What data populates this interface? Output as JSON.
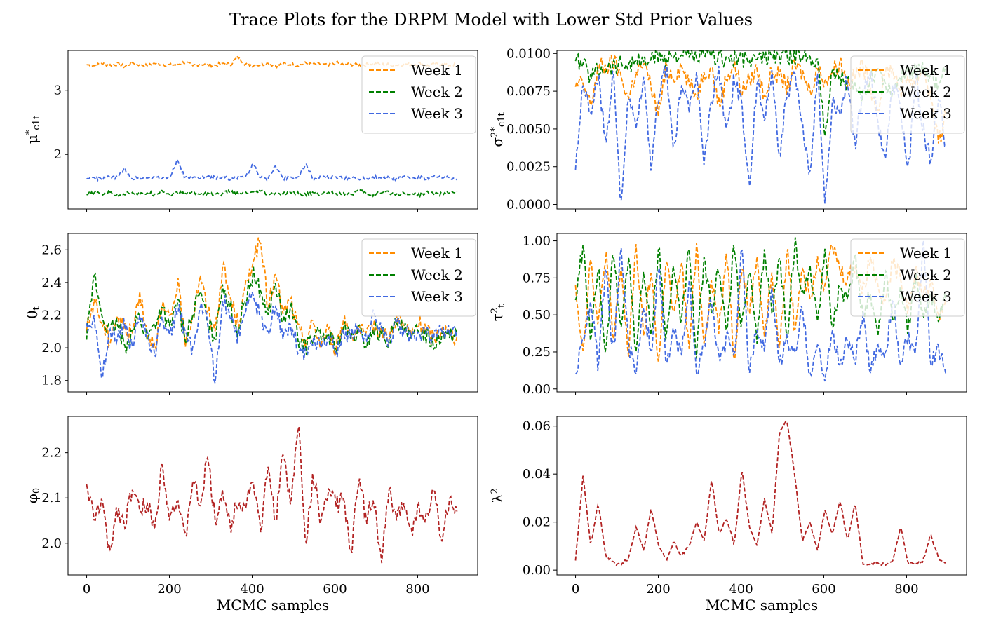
{
  "figure": {
    "title": "Trace Plots for the DRPM Model with Lower Std Prior Values"
  },
  "colors": {
    "week1": "#ff8c00",
    "week2": "#008000",
    "week3": "#4169e1",
    "single": "#b22222"
  },
  "chart_data": [
    {
      "id": "mu",
      "type": "line",
      "ylabel": "μ*c1t",
      "xlabel": "",
      "xlim": [
        -45,
        945
      ],
      "ylim": [
        1.15,
        3.62
      ],
      "yticks": [
        "2",
        "3"
      ],
      "ytick_values": [
        2,
        3
      ],
      "xticks": [
        "0",
        "200",
        "400",
        "600",
        "800"
      ],
      "xticks_labeled": false,
      "legend": "upper right",
      "line_style": "dashed",
      "series": [
        {
          "name": "Week 1",
          "color": "#ff8c00",
          "values": [
            3.4,
            3.38,
            3.42,
            3.39,
            3.41,
            3.37,
            3.43,
            3.4,
            3.38,
            3.42,
            3.41,
            3.39,
            3.4,
            3.44,
            3.38,
            3.41,
            3.4,
            3.39,
            3.42,
            3.4,
            3.52,
            3.41,
            3.39,
            3.4,
            3.42,
            3.38,
            3.41,
            3.4,
            3.39,
            3.42,
            3.4,
            3.41,
            3.38,
            3.43,
            3.4,
            3.41,
            3.39,
            3.4,
            3.42,
            3.4,
            3.4,
            3.39,
            3.41,
            3.4,
            3.42,
            3.38,
            3.4,
            3.41,
            3.39,
            3.4
          ]
        },
        {
          "name": "Week 2",
          "color": "#008000",
          "values": [
            1.37,
            1.4,
            1.38,
            1.42,
            1.36,
            1.39,
            1.41,
            1.37,
            1.4,
            1.38,
            1.44,
            1.37,
            1.4,
            1.39,
            1.41,
            1.38,
            1.4,
            1.37,
            1.39,
            1.42,
            1.38,
            1.4,
            1.39,
            1.43,
            1.37,
            1.4,
            1.38,
            1.41,
            1.39,
            1.37,
            1.4,
            1.38,
            1.41,
            1.39,
            1.4,
            1.38,
            1.44,
            1.39,
            1.37,
            1.4,
            1.41,
            1.38,
            1.4,
            1.39,
            1.37,
            1.41,
            1.39,
            1.38,
            1.4,
            1.42
          ]
        },
        {
          "name": "Week 3",
          "color": "#4169e1",
          "values": [
            1.62,
            1.64,
            1.61,
            1.65,
            1.63,
            1.78,
            1.62,
            1.64,
            1.63,
            1.66,
            1.62,
            1.65,
            1.91,
            1.63,
            1.64,
            1.62,
            1.66,
            1.63,
            1.65,
            1.62,
            1.64,
            1.63,
            1.85,
            1.64,
            1.62,
            1.82,
            1.63,
            1.65,
            1.64,
            1.84,
            1.62,
            1.64,
            1.63,
            1.65,
            1.62,
            1.64,
            1.63,
            1.62,
            1.65,
            1.63,
            1.64,
            1.62,
            1.66,
            1.63,
            1.64,
            1.62,
            1.65,
            1.63,
            1.64,
            1.6
          ]
        }
      ]
    },
    {
      "id": "sigma",
      "type": "line",
      "ylabel": "σ2*c1t",
      "xlabel": "",
      "xlim": [
        -45,
        945
      ],
      "ylim": [
        -0.0003,
        0.0102
      ],
      "yticks": [
        "0.0000",
        "0.0025",
        "0.0050",
        "0.0075",
        "0.0100"
      ],
      "ytick_values": [
        0.0,
        0.0025,
        0.005,
        0.0075,
        0.01
      ],
      "xticks": [
        "0",
        "200",
        "400",
        "600",
        "800"
      ],
      "xticks_labeled": false,
      "legend": "upper right",
      "line_style": "dashed",
      "series": [
        {
          "name": "Week 1",
          "color": "#ff8c00",
          "values": [
            0.0078,
            0.008,
            0.0065,
            0.0092,
            0.009,
            0.0095,
            0.0085,
            0.007,
            0.0088,
            0.0093,
            0.0078,
            0.006,
            0.009,
            0.0085,
            0.0092,
            0.008,
            0.0072,
            0.0088,
            0.0091,
            0.0065,
            0.0085,
            0.0093,
            0.0075,
            0.0082,
            0.009,
            0.0072,
            0.0088,
            0.0085,
            0.0078,
            0.0092,
            0.0087,
            0.0075,
            0.009,
            0.0082,
            0.0088,
            0.0095,
            0.008,
            0.0085,
            0.0092,
            0.0078,
            0.0062,
            0.0088,
            0.009,
            0.0075,
            0.0085,
            0.008,
            0.0092,
            0.007,
            0.004,
            0.006
          ]
        },
        {
          "name": "Week 2",
          "color": "#008000",
          "values": [
            0.0095,
            0.0093,
            0.0085,
            0.009,
            0.0092,
            0.0091,
            0.0094,
            0.0093,
            0.0095,
            0.0094,
            0.0096,
            0.0098,
            0.0097,
            0.0099,
            0.0099,
            0.0098,
            0.0097,
            0.0099,
            0.0098,
            0.0098,
            0.0097,
            0.0096,
            0.0097,
            0.0095,
            0.0096,
            0.0097,
            0.0099,
            0.0098,
            0.0099,
            0.0097,
            0.0099,
            0.0098,
            0.0097,
            0.0045,
            0.009,
            0.0085,
            0.008,
            0.0075,
            0.007,
            0.0085,
            0.009,
            0.008,
            0.0075,
            0.0085,
            0.009,
            0.0088,
            0.0092,
            0.0085,
            0.008,
            0.009
          ]
        },
        {
          "name": "Week 3",
          "color": "#4169e1",
          "values": [
            0.0023,
            0.008,
            0.006,
            0.0085,
            0.004,
            0.009,
            0.0,
            0.007,
            0.005,
            0.0085,
            0.002,
            0.0075,
            0.009,
            0.0035,
            0.008,
            0.006,
            0.0088,
            0.0025,
            0.007,
            0.009,
            0.0045,
            0.0085,
            0.0065,
            0.001,
            0.008,
            0.0055,
            0.009,
            0.003,
            0.0075,
            0.0085,
            0.005,
            0.002,
            0.0088,
            0.0,
            0.007,
            0.006,
            0.0085,
            0.004,
            0.0075,
            0.009,
            0.0055,
            0.003,
            0.008,
            0.0065,
            0.002,
            0.0085,
            0.005,
            0.0028,
            0.007,
            0.004
          ]
        }
      ]
    },
    {
      "id": "theta",
      "type": "line",
      "ylabel": "θt",
      "xlabel": "",
      "xlim": [
        -45,
        945
      ],
      "ylim": [
        1.73,
        2.7
      ],
      "yticks": [
        "1.8",
        "2.0",
        "2.2",
        "2.4",
        "2.6"
      ],
      "ytick_values": [
        1.8,
        2.0,
        2.2,
        2.4,
        2.6
      ],
      "xticks": [
        "0",
        "200",
        "400",
        "600",
        "800"
      ],
      "xticks_labeled": false,
      "legend": "upper right",
      "line_style": "dashed",
      "series": [
        {
          "name": "Week 1",
          "color": "#ff8c00",
          "values": [
            2.1,
            2.3,
            2.15,
            2.05,
            2.2,
            2.12,
            2.08,
            2.35,
            2.1,
            2.02,
            2.25,
            2.15,
            2.4,
            2.05,
            2.18,
            2.45,
            2.22,
            2.1,
            2.5,
            2.3,
            2.15,
            2.35,
            2.55,
            2.65,
            2.25,
            2.45,
            2.2,
            2.3,
            2.1,
            2.05,
            2.15,
            2.02,
            2.12,
            1.98,
            2.18,
            2.08,
            2.12,
            2.05,
            2.15,
            2.1,
            2.05,
            2.2,
            2.12,
            2.08,
            2.15,
            2.1,
            2.05,
            2.12,
            2.08,
            2.07
          ]
        },
        {
          "name": "Week 2",
          "color": "#008000",
          "values": [
            2.05,
            2.45,
            2.2,
            2.1,
            2.15,
            2.0,
            2.1,
            2.2,
            2.05,
            2.15,
            2.25,
            2.1,
            2.3,
            2.05,
            2.2,
            2.35,
            2.15,
            2.05,
            2.4,
            2.25,
            2.1,
            2.3,
            2.45,
            2.35,
            2.2,
            2.4,
            2.15,
            2.25,
            2.05,
            2.0,
            2.1,
            2.05,
            2.08,
            2.0,
            2.12,
            2.05,
            2.1,
            2.02,
            2.12,
            2.08,
            2.05,
            2.15,
            2.1,
            2.05,
            2.12,
            2.08,
            2.03,
            2.1,
            2.06,
            2.09
          ]
        },
        {
          "name": "Week 3",
          "color": "#4169e1",
          "values": [
            2.15,
            2.2,
            1.8,
            2.1,
            2.05,
            2.15,
            2.0,
            2.2,
            2.1,
            1.95,
            2.2,
            2.05,
            2.25,
            2.1,
            2.0,
            2.25,
            2.15,
            1.78,
            2.3,
            2.2,
            2.05,
            2.25,
            2.3,
            2.2,
            2.1,
            2.25,
            2.05,
            2.15,
            2.0,
            1.95,
            2.05,
            2.0,
            2.08,
            1.97,
            2.1,
            2.05,
            2.15,
            2.02,
            2.2,
            2.12,
            2.05,
            2.15,
            2.1,
            2.05,
            2.1,
            2.08,
            2.05,
            2.1,
            2.08,
            2.1
          ]
        }
      ]
    },
    {
      "id": "tau",
      "type": "line",
      "ylabel": "τ2t",
      "xlabel": "",
      "xlim": [
        -45,
        945
      ],
      "ylim": [
        -0.02,
        1.05
      ],
      "yticks": [
        "0.00",
        "0.25",
        "0.50",
        "0.75",
        "1.00"
      ],
      "ytick_values": [
        0.0,
        0.25,
        0.5,
        0.75,
        1.0
      ],
      "xticks": [
        "0",
        "200",
        "400",
        "600",
        "800"
      ],
      "xticks_labeled": false,
      "legend": "upper right",
      "line_style": "dashed",
      "series": [
        {
          "name": "Week 1",
          "color": "#ff8c00",
          "values": [
            0.7,
            0.25,
            0.9,
            0.4,
            0.95,
            0.3,
            0.85,
            0.2,
            0.98,
            0.35,
            0.8,
            0.15,
            0.92,
            0.45,
            0.88,
            0.25,
            0.99,
            0.3,
            0.75,
            0.4,
            0.95,
            0.2,
            0.85,
            0.5,
            0.9,
            0.35,
            0.8,
            0.25,
            0.95,
            0.4,
            0.85,
            0.6,
            0.9,
            0.7,
            0.98,
            0.8,
            0.75,
            0.85,
            0.65,
            0.9,
            0.7,
            0.6,
            0.85,
            0.75,
            0.55,
            0.8,
            0.65,
            0.7,
            0.5,
            0.6
          ]
        },
        {
          "name": "Week 2",
          "color": "#008000",
          "values": [
            0.6,
            0.98,
            0.3,
            0.85,
            0.2,
            0.95,
            0.4,
            0.9,
            0.25,
            0.8,
            0.35,
            0.99,
            0.3,
            0.85,
            0.45,
            0.95,
            0.2,
            0.9,
            0.5,
            0.85,
            0.35,
            0.98,
            0.4,
            0.8,
            0.3,
            0.95,
            0.5,
            0.9,
            0.35,
            0.99,
            0.6,
            0.85,
            0.45,
            0.95,
            0.4,
            0.7,
            0.55,
            0.9,
            0.5,
            0.65,
            0.35,
            0.8,
            0.45,
            0.7,
            0.4,
            0.75,
            0.5,
            0.65,
            0.45,
            0.6
          ]
        },
        {
          "name": "Week 3",
          "color": "#4169e1",
          "values": [
            0.1,
            0.35,
            0.6,
            0.15,
            0.8,
            0.2,
            0.98,
            0.3,
            0.1,
            0.55,
            0.25,
            0.85,
            0.15,
            0.4,
            0.2,
            0.75,
            0.1,
            0.3,
            0.6,
            0.15,
            0.35,
            0.2,
            0.95,
            0.1,
            0.4,
            0.25,
            0.7,
            0.15,
            0.35,
            0.2,
            0.55,
            0.1,
            0.3,
            0.05,
            0.4,
            0.15,
            0.35,
            0.2,
            0.5,
            0.1,
            0.3,
            0.25,
            0.6,
            0.15,
            0.35,
            0.2,
            0.99,
            0.15,
            0.3,
            0.1
          ]
        }
      ]
    },
    {
      "id": "phi",
      "type": "line",
      "ylabel": "φ0",
      "xlabel": "MCMC samples",
      "xlim": [
        -45,
        945
      ],
      "ylim": [
        1.93,
        2.28
      ],
      "yticks": [
        "2.0",
        "2.1",
        "2.2"
      ],
      "ytick_values": [
        2.0,
        2.1,
        2.2
      ],
      "xticks": [
        "0",
        "200",
        "400",
        "600",
        "800"
      ],
      "xticks_labeled": true,
      "legend": "none",
      "line_style": "dashed",
      "series": [
        {
          "name": "",
          "color": "#b22222",
          "values": [
            2.13,
            2.05,
            2.1,
            1.97,
            2.08,
            2.04,
            2.12,
            2.07,
            2.09,
            2.03,
            2.18,
            2.06,
            2.1,
            2.0,
            2.14,
            2.08,
            2.19,
            2.05,
            2.12,
            2.03,
            2.1,
            2.08,
            2.15,
            2.02,
            2.17,
            2.05,
            2.2,
            2.08,
            2.27,
            2.0,
            2.15,
            2.05,
            2.12,
            2.08,
            2.1,
            1.98,
            2.14,
            2.06,
            2.1,
            1.95,
            2.12,
            2.05,
            2.09,
            2.03,
            2.08,
            2.05,
            2.12,
            2.0,
            2.1,
            2.07
          ]
        }
      ]
    },
    {
      "id": "lambda",
      "type": "line",
      "ylabel": "λ2",
      "xlabel": "MCMC samples",
      "xlim": [
        -45,
        945
      ],
      "ylim": [
        -0.002,
        0.064
      ],
      "yticks": [
        "0.00",
        "0.02",
        "0.04",
        "0.06"
      ],
      "ytick_values": [
        0.0,
        0.02,
        0.04,
        0.06
      ],
      "xticks": [
        "0",
        "200",
        "400",
        "600",
        "800"
      ],
      "xticks_labeled": true,
      "legend": "none",
      "line_style": "dashed",
      "series": [
        {
          "name": "",
          "color": "#b22222",
          "values": [
            0.004,
            0.04,
            0.01,
            0.028,
            0.006,
            0.003,
            0.002,
            0.005,
            0.018,
            0.008,
            0.026,
            0.01,
            0.004,
            0.012,
            0.006,
            0.01,
            0.02,
            0.012,
            0.038,
            0.015,
            0.022,
            0.01,
            0.042,
            0.018,
            0.01,
            0.03,
            0.015,
            0.058,
            0.062,
            0.04,
            0.012,
            0.02,
            0.008,
            0.025,
            0.015,
            0.029,
            0.012,
            0.028,
            0.003,
            0.002,
            0.003,
            0.002,
            0.004,
            0.018,
            0.003,
            0.002,
            0.004,
            0.015,
            0.005,
            0.003
          ]
        }
      ]
    }
  ]
}
